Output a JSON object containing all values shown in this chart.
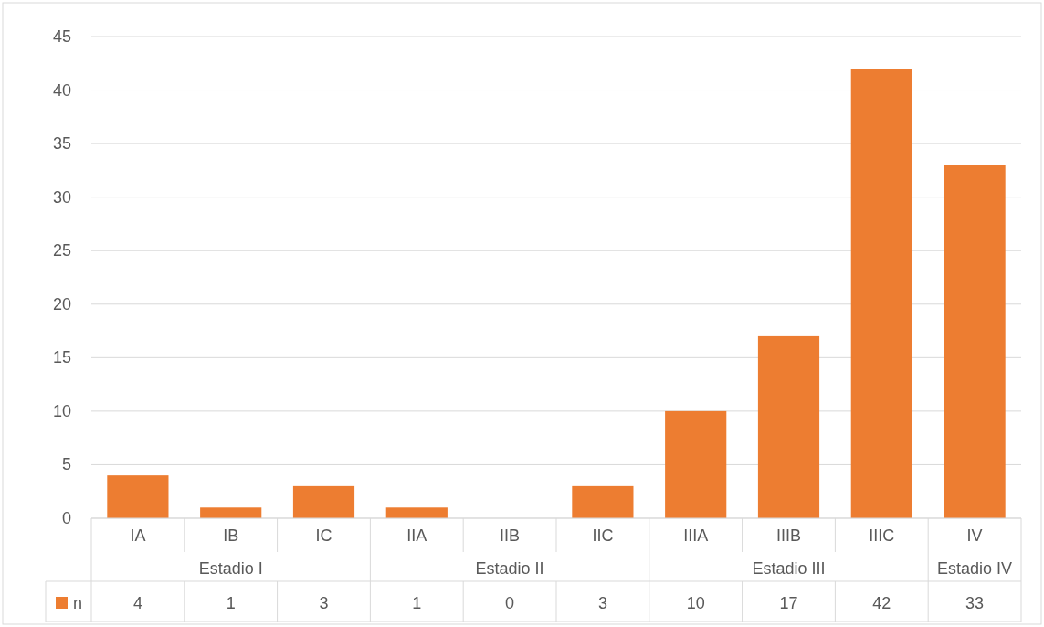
{
  "chart_data": {
    "type": "bar",
    "categories": [
      "IA",
      "IB",
      "IC",
      "IIA",
      "IIB",
      "IIC",
      "IIIA",
      "IIIB",
      "IIIC",
      "IV"
    ],
    "series": [
      {
        "name": "n",
        "color": "#ed7d31",
        "values": [
          4,
          1,
          3,
          1,
          0,
          3,
          10,
          17,
          42,
          33
        ]
      }
    ],
    "ylim": [
      0,
      45
    ],
    "yticks": [
      0,
      5,
      10,
      15,
      20,
      25,
      30,
      35,
      40,
      45
    ],
    "grid": "y",
    "legend": "bottom",
    "data_labels": true,
    "annotations": [
      "Estadio I",
      "Estadio II",
      "Estadio III",
      "Estadio IV"
    ]
  }
}
